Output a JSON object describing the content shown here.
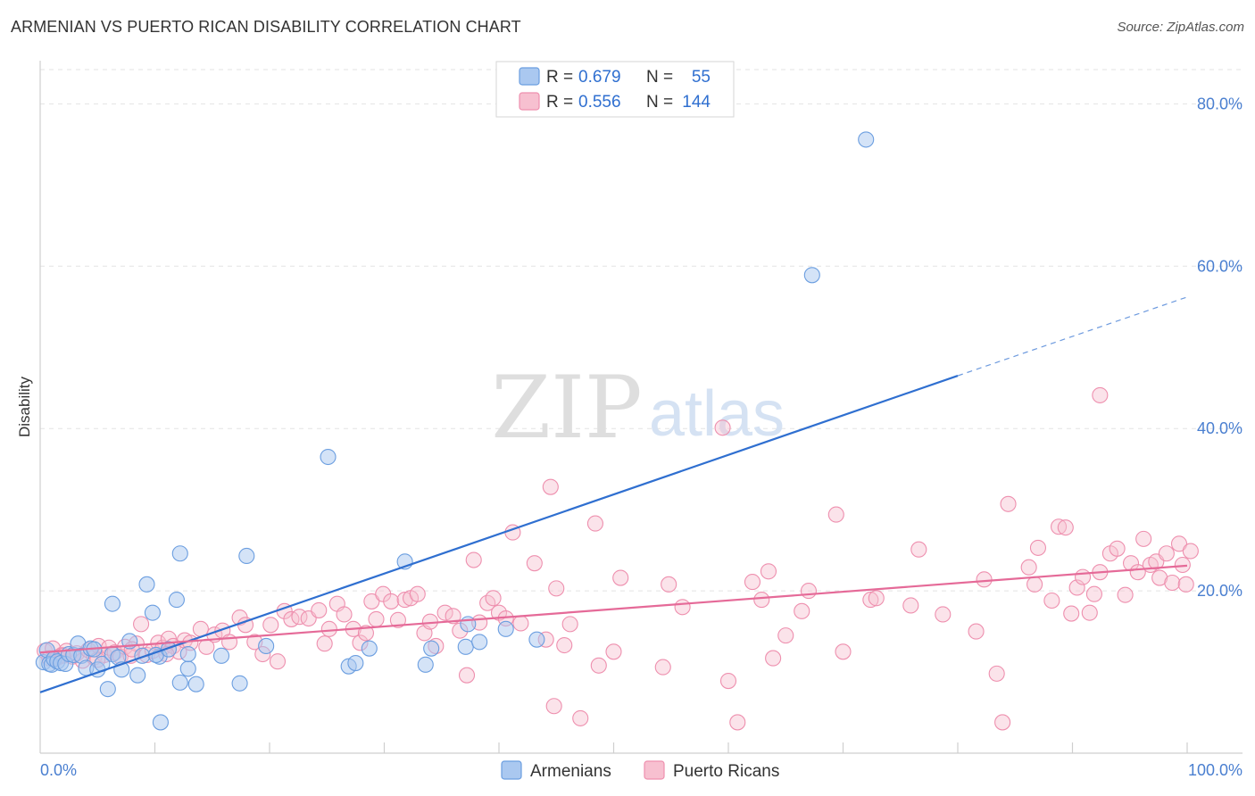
{
  "title": "ARMENIAN VS PUERTO RICAN DISABILITY CORRELATION CHART",
  "source": "Source: ZipAtlas.com",
  "watermark": {
    "zip": "ZIP",
    "atlas": "atlas"
  },
  "legend_box": {
    "rows": [
      {
        "r_label": "R =",
        "r_value": "0.679",
        "n_label": "N =",
        "n_value": "55"
      },
      {
        "r_label": "R =",
        "r_value": "0.556",
        "n_label": "N =",
        "n_value": "144"
      }
    ]
  },
  "chart_data": {
    "type": "scatter",
    "title": "ARMENIAN VS PUERTO RICAN DISABILITY CORRELATION CHART",
    "xlabel": "",
    "ylabel": "Disability",
    "xlim": [
      0,
      100
    ],
    "ylim": [
      0,
      84
    ],
    "x_tick_labels": [
      "0.0%",
      "100.0%"
    ],
    "y_tick_values": [
      20,
      40,
      60,
      80
    ],
    "y_tick_labels": [
      "20.0%",
      "40.0%",
      "60.0%",
      "80.0%"
    ],
    "grid": true,
    "legend_position": "top-center",
    "colors": {
      "armenians_fill": "#aac8f0",
      "armenians_stroke": "#6b9ee0",
      "armenians_line": "#2f6fd0",
      "puerto_fill": "#f7c0d0",
      "puerto_stroke": "#ee8fae",
      "puerto_line": "#e56a98"
    },
    "series": [
      {
        "name": "Armenians",
        "regression": {
          "x0": 0,
          "y0": 7.5,
          "x1": 80,
          "y1": 46.5,
          "dashed_to_x": 100,
          "dashed_to_y": 56.2
        },
        "points": [
          [
            0.3,
            11.2
          ],
          [
            0.6,
            12.7
          ],
          [
            0.8,
            11.0
          ],
          [
            1.0,
            10.9
          ],
          [
            1.2,
            11.6
          ],
          [
            1.5,
            11.3
          ],
          [
            1.8,
            11.1
          ],
          [
            2.2,
            11.0
          ],
          [
            2.5,
            12.2
          ],
          [
            2.9,
            12.1
          ],
          [
            3.3,
            13.5
          ],
          [
            3.6,
            12.0
          ],
          [
            4.0,
            10.5
          ],
          [
            4.4,
            12.9
          ],
          [
            4.7,
            12.8
          ],
          [
            5.0,
            10.3
          ],
          [
            5.4,
            11.0
          ],
          [
            5.9,
            7.9
          ],
          [
            6.3,
            12.2
          ],
          [
            6.8,
            11.8
          ],
          [
            7.1,
            10.3
          ],
          [
            7.8,
            13.8
          ],
          [
            8.5,
            9.6
          ],
          [
            8.9,
            12.0
          ],
          [
            9.3,
            20.8
          ],
          [
            9.8,
            17.3
          ],
          [
            10.4,
            11.9
          ],
          [
            10.1,
            12.1
          ],
          [
            6.3,
            18.4
          ],
          [
            10.5,
            3.8
          ],
          [
            11.2,
            12.8
          ],
          [
            11.9,
            18.9
          ],
          [
            12.2,
            8.7
          ],
          [
            12.9,
            10.4
          ],
          [
            13.6,
            8.5
          ],
          [
            12.9,
            12.2
          ],
          [
            15.8,
            12.0
          ],
          [
            17.4,
            8.6
          ],
          [
            18.0,
            24.3
          ],
          [
            19.7,
            13.2
          ],
          [
            25.1,
            36.5
          ],
          [
            26.9,
            10.7
          ],
          [
            27.5,
            11.1
          ],
          [
            28.7,
            12.9
          ],
          [
            31.8,
            23.6
          ],
          [
            33.6,
            10.9
          ],
          [
            34.1,
            12.9
          ],
          [
            37.3,
            15.9
          ],
          [
            37.1,
            13.1
          ],
          [
            38.3,
            13.7
          ],
          [
            40.6,
            15.3
          ],
          [
            43.3,
            14.0
          ],
          [
            67.3,
            58.9
          ],
          [
            72.0,
            75.6
          ],
          [
            12.2,
            24.6
          ]
        ]
      },
      {
        "name": "Puerto Ricans",
        "regression": {
          "x0": 0,
          "y0": 12.4,
          "x1": 100,
          "y1": 23.1
        },
        "points": [
          [
            0.4,
            12.6
          ],
          [
            0.8,
            11.7
          ],
          [
            1.1,
            12.9
          ],
          [
            1.5,
            11.8
          ],
          [
            1.9,
            12.1
          ],
          [
            2.3,
            12.6
          ],
          [
            2.8,
            11.9
          ],
          [
            3.2,
            12.3
          ],
          [
            3.7,
            11.4
          ],
          [
            4.2,
            12.7
          ],
          [
            4.7,
            11.8
          ],
          [
            5.1,
            13.2
          ],
          [
            5.6,
            12.1
          ],
          [
            6.0,
            13.0
          ],
          [
            6.5,
            12.4
          ],
          [
            7.0,
            11.9
          ],
          [
            7.4,
            13.1
          ],
          [
            7.9,
            12.0
          ],
          [
            8.4,
            13.5
          ],
          [
            8.8,
            15.9
          ],
          [
            9.3,
            12.1
          ],
          [
            9.8,
            12.6
          ],
          [
            10.3,
            13.6
          ],
          [
            10.7,
            13.0
          ],
          [
            11.2,
            14.1
          ],
          [
            11.6,
            13.2
          ],
          [
            12.1,
            12.5
          ],
          [
            12.6,
            13.9
          ],
          [
            13.1,
            13.6
          ],
          [
            14.0,
            15.3
          ],
          [
            14.5,
            13.1
          ],
          [
            15.2,
            14.6
          ],
          [
            15.9,
            15.1
          ],
          [
            16.5,
            13.7
          ],
          [
            17.4,
            16.7
          ],
          [
            17.9,
            15.8
          ],
          [
            18.7,
            13.7
          ],
          [
            19.4,
            12.2
          ],
          [
            20.1,
            15.8
          ],
          [
            20.7,
            11.3
          ],
          [
            21.3,
            17.5
          ],
          [
            21.9,
            16.5
          ],
          [
            22.6,
            16.8
          ],
          [
            23.4,
            16.6
          ],
          [
            24.3,
            17.6
          ],
          [
            24.8,
            13.5
          ],
          [
            25.2,
            15.3
          ],
          [
            25.9,
            18.4
          ],
          [
            26.5,
            17.1
          ],
          [
            27.3,
            15.3
          ],
          [
            27.9,
            13.6
          ],
          [
            28.4,
            14.8
          ],
          [
            28.9,
            18.7
          ],
          [
            29.3,
            16.5
          ],
          [
            29.9,
            19.6
          ],
          [
            30.6,
            18.7
          ],
          [
            31.2,
            16.4
          ],
          [
            31.8,
            18.9
          ],
          [
            32.3,
            19.1
          ],
          [
            32.9,
            19.6
          ],
          [
            33.5,
            14.8
          ],
          [
            34.0,
            16.2
          ],
          [
            34.5,
            13.2
          ],
          [
            35.3,
            17.3
          ],
          [
            36.0,
            16.9
          ],
          [
            36.6,
            15.1
          ],
          [
            37.2,
            9.6
          ],
          [
            37.8,
            23.8
          ],
          [
            38.3,
            16.1
          ],
          [
            39.0,
            18.5
          ],
          [
            39.5,
            19.1
          ],
          [
            40.0,
            17.3
          ],
          [
            40.6,
            16.6
          ],
          [
            41.2,
            27.2
          ],
          [
            41.9,
            16.0
          ],
          [
            43.1,
            23.4
          ],
          [
            44.1,
            14.0
          ],
          [
            44.8,
            5.8
          ],
          [
            44.5,
            32.8
          ],
          [
            45.0,
            20.3
          ],
          [
            45.7,
            13.3
          ],
          [
            46.2,
            15.9
          ],
          [
            47.1,
            4.3
          ],
          [
            48.4,
            28.3
          ],
          [
            48.7,
            10.8
          ],
          [
            50.6,
            21.6
          ],
          [
            54.3,
            10.6
          ],
          [
            54.8,
            20.8
          ],
          [
            60.0,
            8.9
          ],
          [
            60.8,
            3.8
          ],
          [
            62.1,
            21.1
          ],
          [
            62.9,
            18.9
          ],
          [
            63.5,
            22.4
          ],
          [
            63.9,
            11.7
          ],
          [
            66.4,
            17.5
          ],
          [
            67.0,
            20.0
          ],
          [
            69.4,
            29.4
          ],
          [
            72.4,
            18.9
          ],
          [
            72.9,
            19.1
          ],
          [
            75.9,
            18.2
          ],
          [
            76.6,
            25.1
          ],
          [
            78.7,
            17.1
          ],
          [
            81.6,
            15.0
          ],
          [
            82.3,
            21.4
          ],
          [
            83.4,
            9.8
          ],
          [
            83.9,
            3.8
          ],
          [
            84.4,
            30.7
          ],
          [
            86.2,
            22.9
          ],
          [
            86.7,
            20.8
          ],
          [
            87.0,
            25.3
          ],
          [
            88.2,
            18.8
          ],
          [
            88.8,
            27.9
          ],
          [
            89.4,
            27.8
          ],
          [
            89.9,
            17.2
          ],
          [
            90.4,
            20.4
          ],
          [
            90.9,
            21.7
          ],
          [
            91.5,
            17.3
          ],
          [
            91.9,
            19.6
          ],
          [
            92.4,
            44.1
          ],
          [
            92.4,
            22.3
          ],
          [
            93.3,
            24.6
          ],
          [
            93.9,
            25.2
          ],
          [
            94.6,
            19.5
          ],
          [
            95.1,
            23.4
          ],
          [
            95.7,
            22.3
          ],
          [
            96.2,
            26.4
          ],
          [
            96.8,
            23.2
          ],
          [
            97.3,
            23.6
          ],
          [
            97.6,
            21.6
          ],
          [
            98.2,
            24.6
          ],
          [
            98.7,
            21.0
          ],
          [
            99.3,
            25.8
          ],
          [
            99.6,
            23.2
          ],
          [
            99.9,
            20.8
          ],
          [
            100.3,
            24.9
          ],
          [
            59.5,
            40.1
          ],
          [
            50.0,
            12.5
          ],
          [
            56.0,
            18.0
          ],
          [
            65.0,
            14.5
          ],
          [
            70.0,
            12.5
          ],
          [
            2.0,
            12.0
          ],
          [
            5.0,
            11.5
          ],
          [
            8.0,
            12.8
          ],
          [
            11.0,
            12.2
          ]
        ]
      }
    ]
  },
  "bottom_legend": [
    {
      "label": "Armenians"
    },
    {
      "label": "Puerto Ricans"
    }
  ]
}
